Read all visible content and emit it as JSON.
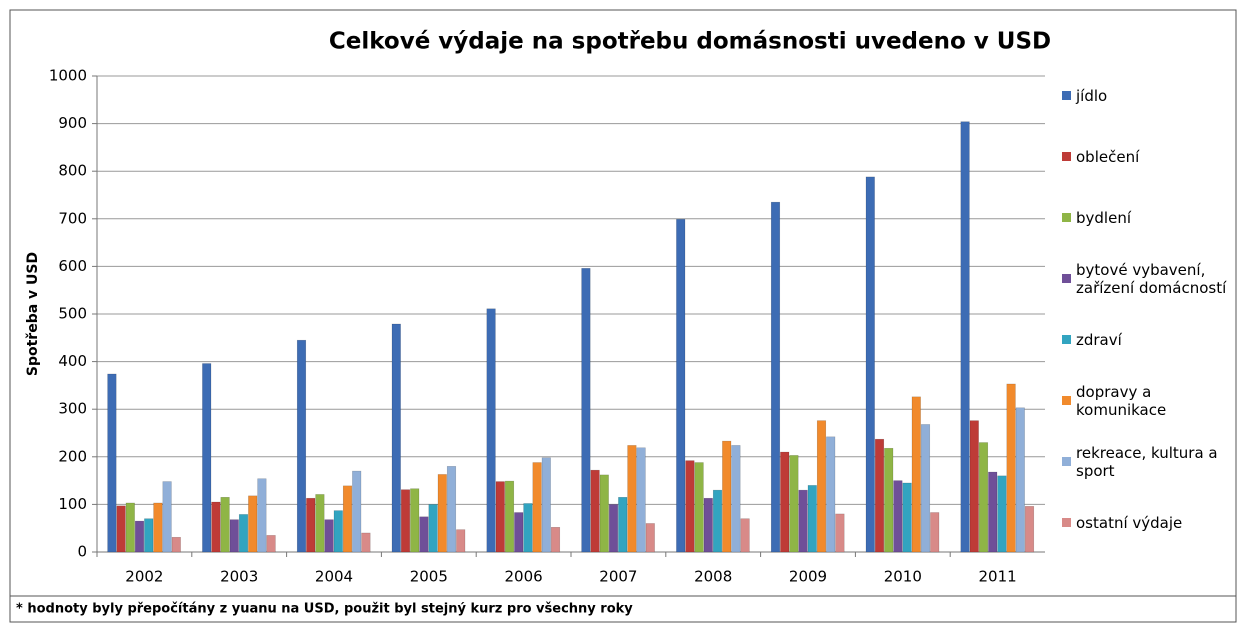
{
  "chart_data": {
    "type": "bar",
    "title": "Celkové výdaje na spotřebu domásnosti uvedeno v USD",
    "y_label": "Spotřeba v USD",
    "footnote": "* hodnoty byly přepočítány z yuanu na USD, použit byl stejný kurz pro všechny roky",
    "categories": [
      "2002",
      "2003",
      "2004",
      "2005",
      "2006",
      "2007",
      "2008",
      "2009",
      "2010",
      "2011"
    ],
    "ylim": [
      0,
      1000
    ],
    "yticks": [
      0,
      100,
      200,
      300,
      400,
      500,
      600,
      700,
      800,
      900,
      1000
    ],
    "grid": true,
    "legend": "right",
    "series": [
      {
        "name": "jídlo",
        "color": "#3d6cb4",
        "values": [
          374,
          396,
          445,
          479,
          511,
          596,
          699,
          735,
          788,
          904
        ]
      },
      {
        "name": "oblečení",
        "color": "#be3b37",
        "values": [
          97,
          105,
          113,
          131,
          148,
          172,
          192,
          210,
          237,
          276
        ]
      },
      {
        "name": "bydlení",
        "color": "#8fb546",
        "values": [
          103,
          115,
          121,
          133,
          149,
          162,
          188,
          203,
          218,
          230
        ]
      },
      {
        "name": "bytové vybavení, zařízení domácností",
        "color": "#6f4f98",
        "values": [
          65,
          68,
          68,
          74,
          83,
          100,
          113,
          130,
          150,
          168
        ]
      },
      {
        "name": "zdraví",
        "color": "#32a4c0",
        "values": [
          70,
          79,
          87,
          100,
          102,
          115,
          130,
          140,
          145,
          160
        ]
      },
      {
        "name": "dopravy a komunikace",
        "color": "#f18a2c",
        "values": [
          103,
          118,
          139,
          163,
          188,
          224,
          233,
          276,
          326,
          353
        ]
      },
      {
        "name": "rekreace, kultura a sport",
        "color": "#90afd8",
        "values": [
          148,
          154,
          170,
          180,
          198,
          219,
          224,
          242,
          268,
          303
        ]
      },
      {
        "name": "ostatní výdaje",
        "color": "#d88a88",
        "values": [
          31,
          35,
          40,
          47,
          52,
          60,
          70,
          80,
          83,
          96
        ]
      }
    ]
  }
}
